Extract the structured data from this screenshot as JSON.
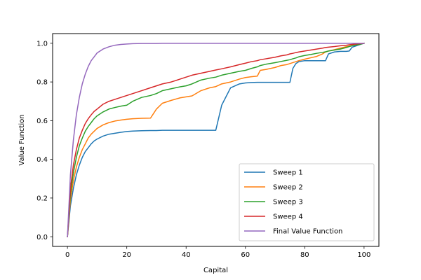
{
  "chart_data": {
    "type": "line",
    "title": "",
    "xlabel": "Capital",
    "ylabel": "Value Function",
    "xlim": [
      -5,
      105
    ],
    "ylim": [
      -0.05,
      1.05
    ],
    "xticks": [
      0,
      20,
      40,
      60,
      80,
      100
    ],
    "xtick_labels": [
      "0",
      "20",
      "40",
      "60",
      "80",
      "100"
    ],
    "yticks": [
      0.0,
      0.2,
      0.4,
      0.6,
      0.8,
      1.0
    ],
    "ytick_labels": [
      "0.0",
      "0.2",
      "0.4",
      "0.6",
      "0.8",
      "1.0"
    ],
    "grid": false,
    "legend_position": "lower-right",
    "x": [
      0,
      1,
      2,
      3,
      4,
      5,
      6,
      7,
      8,
      9,
      10,
      12,
      14,
      16,
      18,
      20,
      22,
      25,
      28,
      30,
      32,
      35,
      38,
      40,
      42,
      45,
      48,
      50,
      52,
      55,
      58,
      60,
      62,
      64,
      65,
      67,
      70,
      72,
      74,
      75,
      76,
      77,
      78,
      80,
      82,
      84,
      86,
      87,
      88,
      90,
      92,
      94,
      95,
      96,
      98,
      100
    ],
    "series": [
      {
        "name": "Sweep 1",
        "color": "#1f77b4",
        "values": [
          0.0,
          0.16,
          0.25,
          0.32,
          0.37,
          0.41,
          0.44,
          0.46,
          0.48,
          0.495,
          0.505,
          0.52,
          0.53,
          0.535,
          0.54,
          0.544,
          0.546,
          0.548,
          0.549,
          0.549,
          0.55,
          0.55,
          0.55,
          0.55,
          0.55,
          0.55,
          0.55,
          0.55,
          0.68,
          0.77,
          0.79,
          0.795,
          0.797,
          0.798,
          0.798,
          0.798,
          0.798,
          0.798,
          0.798,
          0.798,
          0.87,
          0.895,
          0.905,
          0.91,
          0.91,
          0.91,
          0.91,
          0.91,
          0.945,
          0.955,
          0.958,
          0.958,
          0.96,
          0.98,
          0.99,
          1.0
        ]
      },
      {
        "name": "Sweep 2",
        "color": "#ff7f0e",
        "values": [
          0.0,
          0.19,
          0.29,
          0.36,
          0.41,
          0.45,
          0.48,
          0.51,
          0.53,
          0.545,
          0.56,
          0.578,
          0.59,
          0.598,
          0.603,
          0.607,
          0.61,
          0.612,
          0.613,
          0.66,
          0.69,
          0.705,
          0.718,
          0.723,
          0.728,
          0.755,
          0.77,
          0.776,
          0.79,
          0.8,
          0.815,
          0.823,
          0.827,
          0.83,
          0.86,
          0.865,
          0.875,
          0.885,
          0.89,
          0.895,
          0.9,
          0.905,
          0.91,
          0.918,
          0.925,
          0.932,
          0.945,
          0.955,
          0.96,
          0.967,
          0.975,
          0.982,
          0.985,
          0.988,
          0.993,
          1.0
        ]
      },
      {
        "name": "Sweep 3",
        "color": "#2ca02c",
        "values": [
          0.0,
          0.22,
          0.33,
          0.41,
          0.47,
          0.51,
          0.545,
          0.57,
          0.59,
          0.61,
          0.625,
          0.645,
          0.66,
          0.668,
          0.675,
          0.68,
          0.7,
          0.72,
          0.73,
          0.74,
          0.755,
          0.765,
          0.775,
          0.78,
          0.79,
          0.81,
          0.82,
          0.825,
          0.835,
          0.845,
          0.855,
          0.86,
          0.87,
          0.878,
          0.885,
          0.892,
          0.9,
          0.906,
          0.912,
          0.915,
          0.92,
          0.924,
          0.93,
          0.937,
          0.942,
          0.948,
          0.953,
          0.956,
          0.96,
          0.965,
          0.97,
          0.978,
          0.983,
          0.987,
          0.993,
          1.0
        ]
      },
      {
        "name": "Sweep 4",
        "color": "#d62728",
        "values": [
          0.0,
          0.25,
          0.37,
          0.45,
          0.51,
          0.55,
          0.585,
          0.61,
          0.63,
          0.648,
          0.66,
          0.685,
          0.7,
          0.71,
          0.72,
          0.73,
          0.74,
          0.755,
          0.77,
          0.78,
          0.79,
          0.8,
          0.815,
          0.825,
          0.835,
          0.845,
          0.855,
          0.862,
          0.868,
          0.878,
          0.89,
          0.897,
          0.905,
          0.91,
          0.915,
          0.92,
          0.928,
          0.935,
          0.94,
          0.945,
          0.948,
          0.952,
          0.955,
          0.96,
          0.965,
          0.97,
          0.975,
          0.978,
          0.98,
          0.983,
          0.987,
          0.99,
          0.992,
          0.994,
          0.997,
          1.0
        ]
      },
      {
        "name": "Final Value Function",
        "color": "#9467bd",
        "values": [
          0.0,
          0.32,
          0.5,
          0.63,
          0.72,
          0.79,
          0.84,
          0.88,
          0.91,
          0.93,
          0.95,
          0.97,
          0.982,
          0.99,
          0.994,
          0.996,
          0.998,
          0.999,
          0.999,
          0.999,
          1.0,
          1.0,
          1.0,
          1.0,
          1.0,
          1.0,
          1.0,
          1.0,
          1.0,
          1.0,
          1.0,
          1.0,
          1.0,
          1.0,
          1.0,
          1.0,
          1.0,
          1.0,
          1.0,
          1.0,
          1.0,
          1.0,
          1.0,
          1.0,
          1.0,
          1.0,
          1.0,
          1.0,
          1.0,
          1.0,
          1.0,
          1.0,
          1.0,
          1.0,
          1.0,
          1.0
        ]
      }
    ]
  }
}
